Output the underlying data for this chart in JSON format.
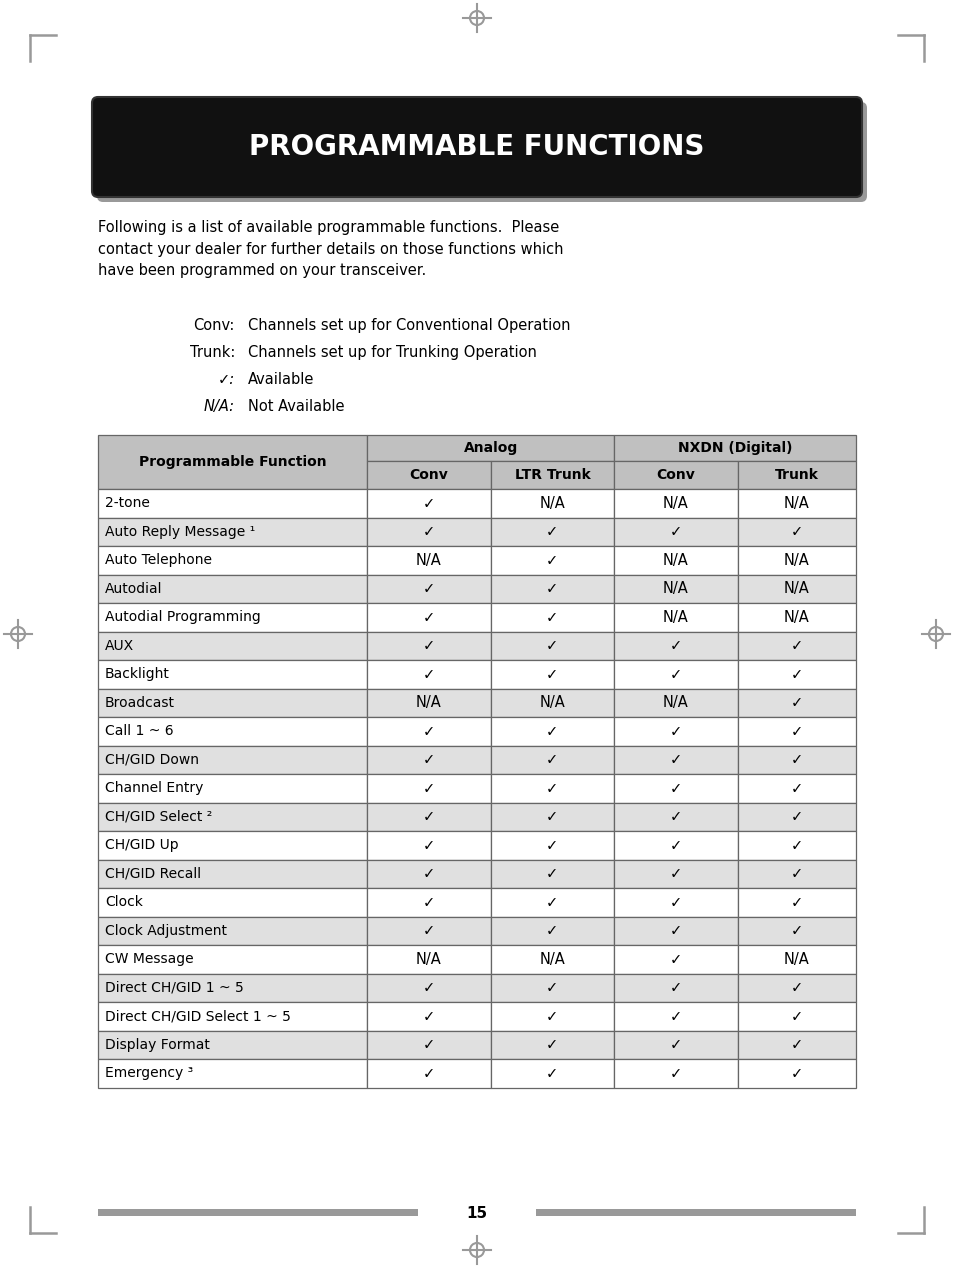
{
  "title": "PROGRAMMABLE FUNCTIONS",
  "intro_text": "Following is a list of available programmable functions.  Please\ncontact your dealer for further details on those functions which\nhave been programmed on your transceiver.",
  "legend": [
    [
      "Conv:",
      "Channels set up for Conventional Operation"
    ],
    [
      "Trunk:",
      "Channels set up for Trunking Operation"
    ],
    [
      "✓:",
      "Available"
    ],
    [
      "N/A:",
      "Not Available"
    ]
  ],
  "col_headers_row2": [
    "Programmable Function",
    "Conv",
    "LTR Trunk",
    "Conv",
    "Trunk"
  ],
  "table_data": [
    [
      "2-tone",
      "✓",
      "N/A",
      "N/A",
      "N/A"
    ],
    [
      "Auto Reply Message ¹",
      "✓",
      "✓",
      "✓",
      "✓"
    ],
    [
      "Auto Telephone",
      "N/A",
      "✓",
      "N/A",
      "N/A"
    ],
    [
      "Autodial",
      "✓",
      "✓",
      "N/A",
      "N/A"
    ],
    [
      "Autodial Programming",
      "✓",
      "✓",
      "N/A",
      "N/A"
    ],
    [
      "AUX",
      "✓",
      "✓",
      "✓",
      "✓"
    ],
    [
      "Backlight",
      "✓",
      "✓",
      "✓",
      "✓"
    ],
    [
      "Broadcast",
      "N/A",
      "N/A",
      "N/A",
      "✓"
    ],
    [
      "Call 1 ~ 6",
      "✓",
      "✓",
      "✓",
      "✓"
    ],
    [
      "CH/GID Down",
      "✓",
      "✓",
      "✓",
      "✓"
    ],
    [
      "Channel Entry",
      "✓",
      "✓",
      "✓",
      "✓"
    ],
    [
      "CH/GID Select ²",
      "✓",
      "✓",
      "✓",
      "✓"
    ],
    [
      "CH/GID Up",
      "✓",
      "✓",
      "✓",
      "✓"
    ],
    [
      "CH/GID Recall",
      "✓",
      "✓",
      "✓",
      "✓"
    ],
    [
      "Clock",
      "✓",
      "✓",
      "✓",
      "✓"
    ],
    [
      "Clock Adjustment",
      "✓",
      "✓",
      "✓",
      "✓"
    ],
    [
      "CW Message",
      "N/A",
      "N/A",
      "✓",
      "N/A"
    ],
    [
      "Direct CH/GID 1 ~ 5",
      "✓",
      "✓",
      "✓",
      "✓"
    ],
    [
      "Direct CH/GID Select 1 ~ 5",
      "✓",
      "✓",
      "✓",
      "✓"
    ],
    [
      "Display Format",
      "✓",
      "✓",
      "✓",
      "✓"
    ],
    [
      "Emergency ³",
      "✓",
      "✓",
      "✓",
      "✓"
    ]
  ],
  "page_number": "15",
  "bg_color": "#ffffff",
  "header_bg": "#111111",
  "header_text_color": "#ffffff",
  "table_header_bg": "#c0c0c0",
  "table_alt_row_bg": "#e0e0e0",
  "table_white_row_bg": "#ffffff",
  "border_color": "#666666",
  "corner_color": "#999999",
  "cross_color": "#999999"
}
